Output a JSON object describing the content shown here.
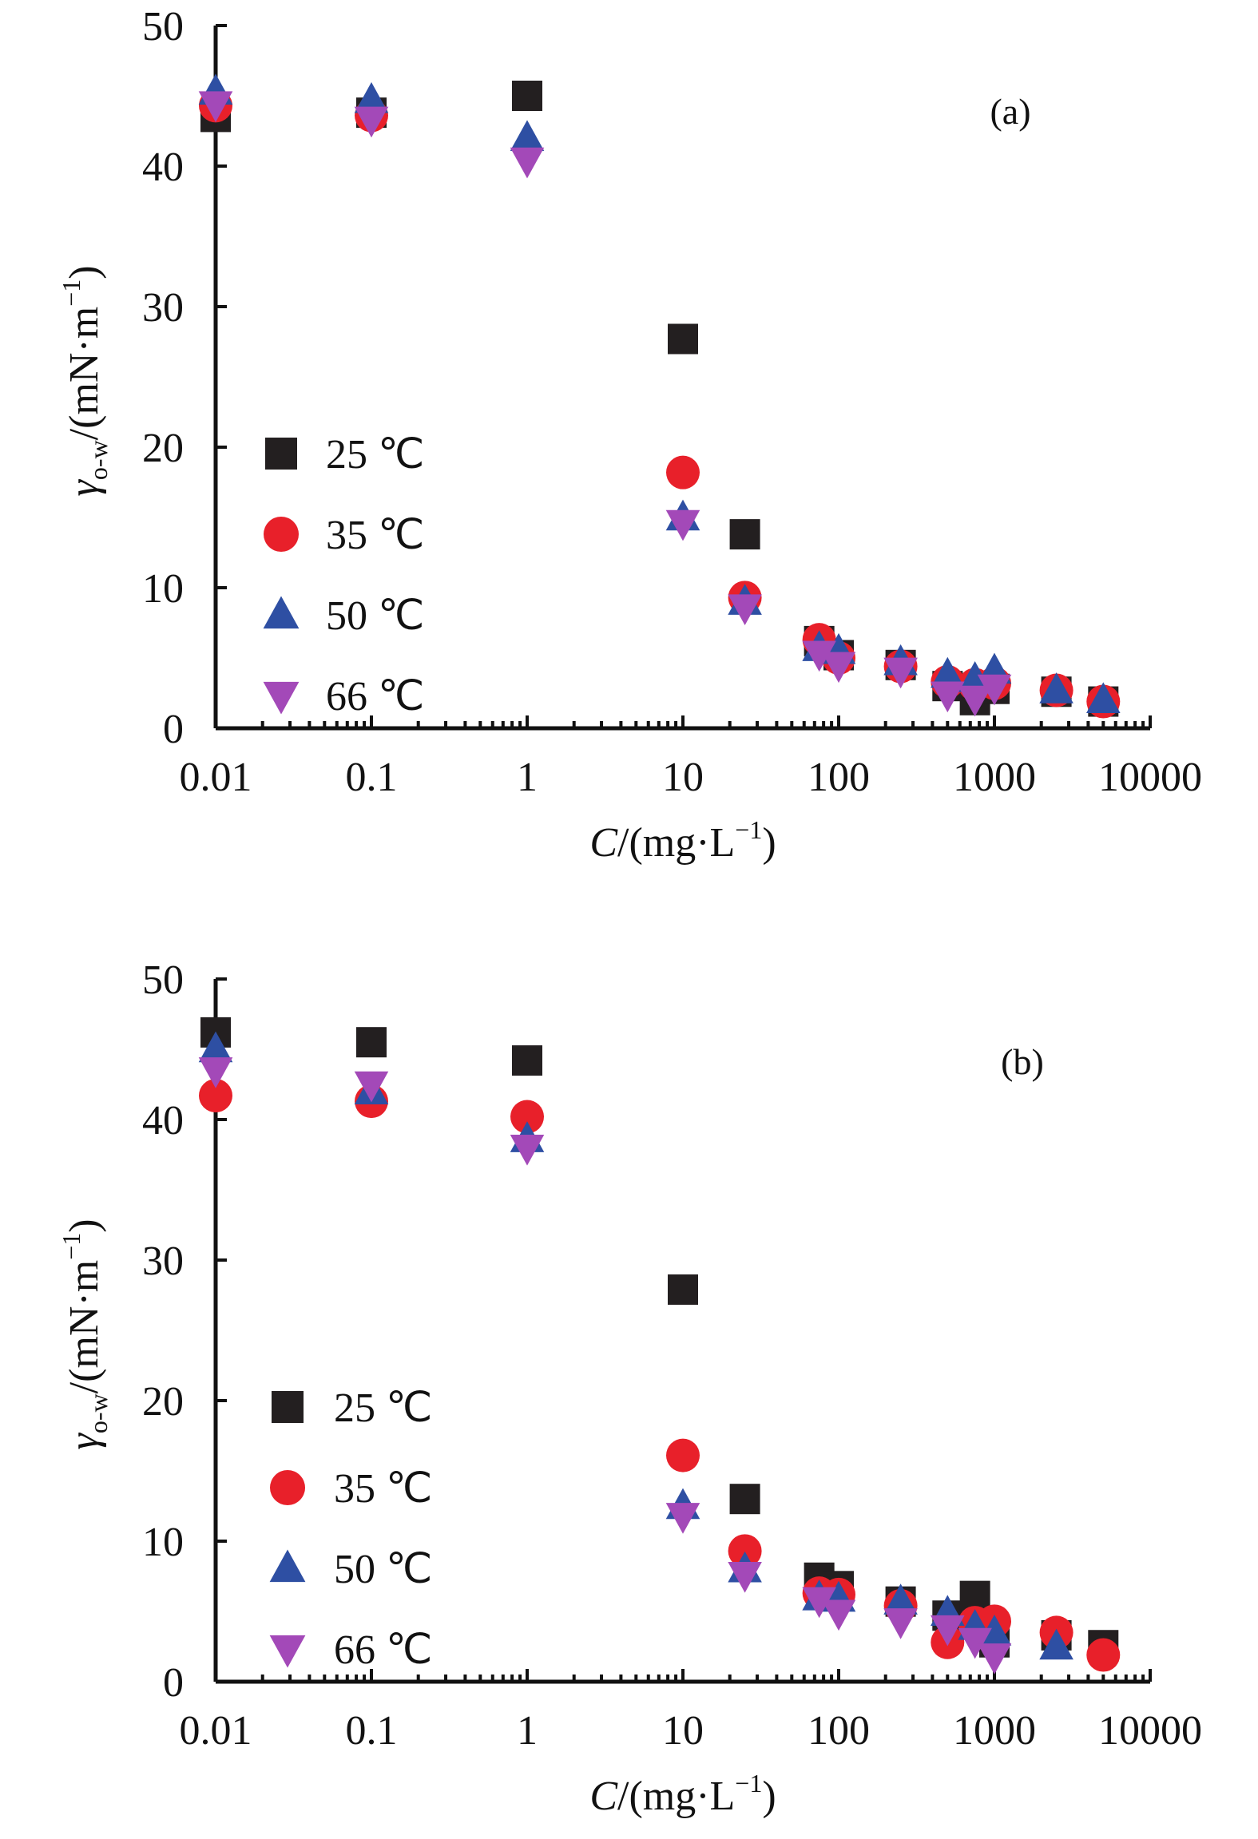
{
  "chart_data": [
    {
      "type": "scatter",
      "panel_label": "(a)",
      "xlabel": {
        "italic": "C",
        "rest": "/(mg·L",
        "sup": "−1",
        "close": ")"
      },
      "ylabel": {
        "symbol": "γ",
        "sub": "o-w",
        "rest": "/(mN·m",
        "sup": "−1",
        "close": ")"
      },
      "x_scale": "log",
      "xlim": [
        0.01,
        10000
      ],
      "ylim": [
        0,
        50
      ],
      "x_tick_labels": [
        "0.01",
        "0.1",
        "1",
        "10",
        "100",
        "1000",
        "10000"
      ],
      "y_tick_labels": [
        "0",
        "10",
        "20",
        "30",
        "40",
        "50"
      ],
      "legend_position": "left-middle",
      "series": [
        {
          "name": "25 ℃",
          "marker": "square",
          "color": "#231f20",
          "points": [
            [
              0.01,
              43.5
            ],
            [
              0.1,
              43.8
            ],
            [
              1,
              45.0
            ],
            [
              10,
              27.7
            ],
            [
              25,
              13.8
            ],
            [
              75,
              6.2
            ],
            [
              100,
              5.2
            ],
            [
              250,
              4.5
            ],
            [
              500,
              3.0
            ],
            [
              750,
              2.0
            ],
            [
              1000,
              2.8
            ],
            [
              2500,
              2.6
            ],
            [
              5000,
              1.9
            ]
          ]
        },
        {
          "name": "35 ℃",
          "marker": "circle",
          "color": "#e8202a",
          "points": [
            [
              0.01,
              44.3
            ],
            [
              0.1,
              43.6
            ],
            [
              10,
              18.2
            ],
            [
              25,
              9.3
            ],
            [
              75,
              6.3
            ],
            [
              100,
              5.0
            ],
            [
              250,
              4.4
            ],
            [
              500,
              3.3
            ],
            [
              750,
              3.1
            ],
            [
              1000,
              3.2
            ],
            [
              2500,
              2.7
            ],
            [
              5000,
              1.9
            ]
          ]
        },
        {
          "name": "50 ℃",
          "marker": "triangle-up",
          "color": "#2e4fa3",
          "points": [
            [
              0.01,
              45.3
            ],
            [
              0.1,
              44.7
            ],
            [
              1,
              42.0
            ],
            [
              10,
              15.0
            ],
            [
              25,
              9.0
            ],
            [
              75,
              5.7
            ],
            [
              100,
              5.5
            ],
            [
              250,
              4.7
            ],
            [
              500,
              3.8
            ],
            [
              750,
              3.5
            ],
            [
              1000,
              4.1
            ],
            [
              2500,
              2.7
            ],
            [
              5000,
              2.0
            ]
          ]
        },
        {
          "name": "66 ℃",
          "marker": "triangle-down",
          "color": "#a349b8",
          "points": [
            [
              0.01,
              44.4
            ],
            [
              0.1,
              43.3
            ],
            [
              1,
              40.4
            ],
            [
              10,
              14.6
            ],
            [
              25,
              8.6
            ],
            [
              75,
              5.3
            ],
            [
              100,
              4.5
            ],
            [
              250,
              4.1
            ],
            [
              500,
              2.4
            ],
            [
              750,
              2.1
            ],
            [
              1000,
              2.9
            ]
          ]
        }
      ]
    },
    {
      "type": "scatter",
      "panel_label": "(b)",
      "xlabel": {
        "italic": "C",
        "rest": "/(mg·L",
        "sup": "−1",
        "close": ")"
      },
      "ylabel": {
        "symbol": "γ",
        "sub": "o-w",
        "rest": "/(mN·m",
        "sup": "−1",
        "close": ")"
      },
      "x_scale": "log",
      "xlim": [
        0.01,
        10000
      ],
      "ylim": [
        0,
        50
      ],
      "x_tick_labels": [
        "0.01",
        "0.1",
        "1",
        "10",
        "100",
        "1000",
        "10000"
      ],
      "y_tick_labels": [
        "0",
        "10",
        "20",
        "30",
        "40",
        "50"
      ],
      "legend_position": "left-middle",
      "series": [
        {
          "name": "25 ℃",
          "marker": "square",
          "color": "#231f20",
          "points": [
            [
              0.01,
              46.2
            ],
            [
              0.1,
              45.5
            ],
            [
              1,
              44.2
            ],
            [
              10,
              27.9
            ],
            [
              25,
              13.0
            ],
            [
              75,
              7.4
            ],
            [
              100,
              6.8
            ],
            [
              250,
              5.7
            ],
            [
              500,
              4.7
            ],
            [
              750,
              6.1
            ],
            [
              1000,
              2.8
            ],
            [
              2500,
              3.3
            ],
            [
              5000,
              2.6
            ]
          ]
        },
        {
          "name": "35 ℃",
          "marker": "circle",
          "color": "#e8202a",
          "points": [
            [
              0.01,
              41.7
            ],
            [
              0.1,
              41.3
            ],
            [
              1,
              40.2
            ],
            [
              10,
              16.1
            ],
            [
              25,
              9.3
            ],
            [
              75,
              6.3
            ],
            [
              100,
              6.2
            ],
            [
              250,
              5.4
            ],
            [
              500,
              2.8
            ],
            [
              750,
              4.2
            ],
            [
              1000,
              4.3
            ],
            [
              2500,
              3.5
            ],
            [
              5000,
              1.9
            ]
          ]
        },
        {
          "name": "50 ℃",
          "marker": "triangle-up",
          "color": "#2e4fa3",
          "points": [
            [
              0.01,
              45.0
            ],
            [
              0.1,
              42.0
            ],
            [
              1,
              38.6
            ],
            [
              10,
              12.5
            ],
            [
              25,
              8.0
            ],
            [
              75,
              6.0
            ],
            [
              100,
              5.9
            ],
            [
              250,
              5.7
            ],
            [
              500,
              4.9
            ],
            [
              750,
              3.9
            ],
            [
              1000,
              3.5
            ],
            [
              2500,
              2.5
            ]
          ]
        },
        {
          "name": "66 ℃",
          "marker": "triangle-down",
          "color": "#a349b8",
          "points": [
            [
              0.01,
              43.5
            ],
            [
              0.1,
              42.5
            ],
            [
              1,
              38.0
            ],
            [
              10,
              11.8
            ],
            [
              25,
              7.6
            ],
            [
              75,
              5.8
            ],
            [
              100,
              4.9
            ],
            [
              250,
              4.3
            ],
            [
              500,
              3.8
            ],
            [
              750,
              2.9
            ],
            [
              1000,
              1.8
            ]
          ]
        }
      ]
    }
  ]
}
